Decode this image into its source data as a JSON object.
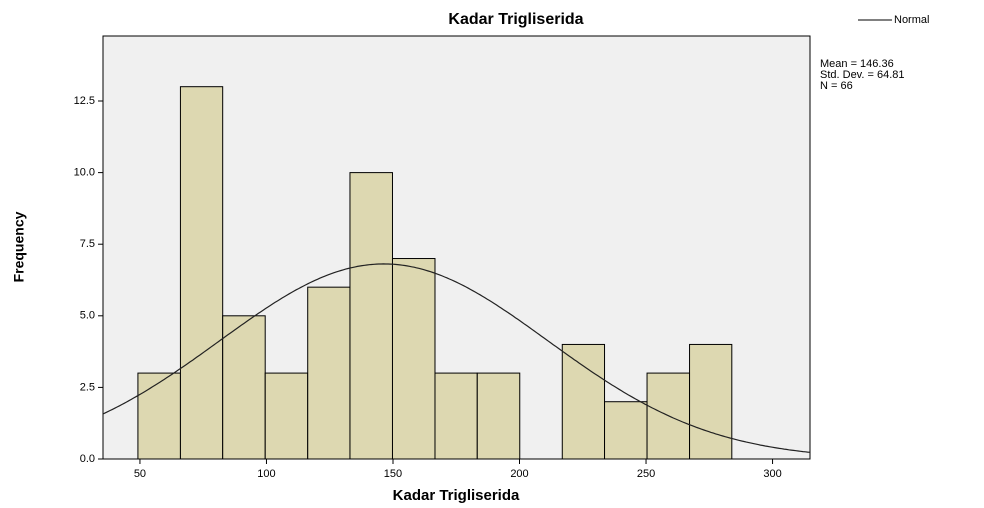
{
  "chart_data": {
    "type": "histogram",
    "title": "Kadar Trigliserida",
    "x_label": "Kadar Trigliserida",
    "y_label": "Frequency",
    "bins": [
      49.2,
      66.0,
      82.7,
      99.5,
      116.3,
      133.0,
      149.8,
      166.6,
      183.3,
      200.1,
      216.9,
      233.6,
      250.4,
      267.2,
      283.9
    ],
    "counts": [
      3,
      13,
      5,
      3,
      6,
      10,
      7,
      3,
      3,
      0,
      4,
      2,
      3,
      4
    ],
    "color": "#d9d4a6",
    "xlim": [
      35.4,
      314.8
    ],
    "xticks": [
      50,
      100,
      150,
      200,
      250,
      300
    ],
    "ylim": [
      0,
      14.77
    ],
    "yticks": [
      {
        "value": 0,
        "label": "0.0"
      },
      2.5,
      {
        "value": 5,
        "label": "5.0"
      },
      7.5,
      {
        "value": 10,
        "label": "10.0"
      },
      12.5
    ],
    "normal_curve": {
      "name": "Normal",
      "mean": 146.36,
      "sd": 64.81,
      "n": 66,
      "value_labels": [
        "Mean = 146.36",
        "Std. Dev. = 64.81",
        "N = 66"
      ]
    }
  }
}
